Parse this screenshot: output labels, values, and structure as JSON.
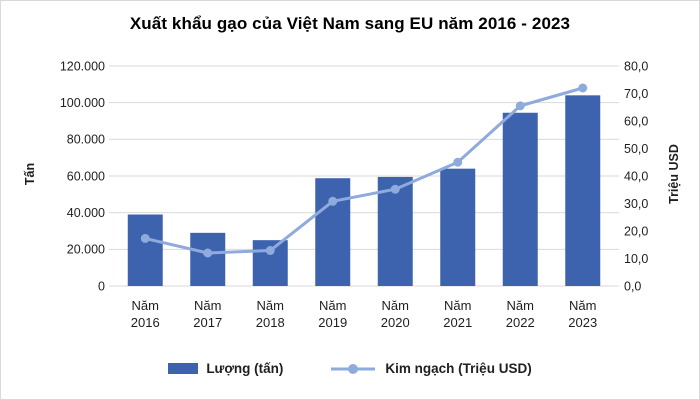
{
  "chart_data": {
    "type": "combo-bar-line",
    "title": "Xuất khẩu gạo của Việt Nam sang EU năm 2016 - 2023",
    "categories": [
      "Năm 2016",
      "Năm 2017",
      "Năm 2018",
      "Năm 2019",
      "Năm 2020",
      "Năm 2021",
      "Năm 2022",
      "Năm 2023"
    ],
    "series": [
      {
        "name": "Lượng (tấn)",
        "type": "bar",
        "axis": "left",
        "color": "#3d63ae",
        "values": [
          39000,
          29000,
          25000,
          58800,
          59500,
          64000,
          94500,
          104000
        ]
      },
      {
        "name": "Kim ngạch (Triệu USD)",
        "type": "line",
        "axis": "right",
        "color": "#8faadc",
        "values": [
          17.3,
          12.0,
          12.9,
          30.8,
          35.2,
          45.0,
          65.5,
          72.0
        ]
      }
    ],
    "axis_left": {
      "label": "Tấn",
      "min": 0,
      "max": 120000,
      "step": 20000,
      "tick_labels": [
        "0",
        "20.000",
        "40.000",
        "60.000",
        "80.000",
        "100.000",
        "120.000"
      ]
    },
    "axis_right": {
      "label": "Triệu USD",
      "min": 0,
      "max": 80,
      "step": 10,
      "tick_labels": [
        "0,0",
        "10,0",
        "20,0",
        "30,0",
        "40,0",
        "50,0",
        "60,0",
        "70,0",
        "80,0"
      ]
    },
    "grid": true,
    "legend_position": "bottom",
    "colors": {
      "grid": "#d9d9d9",
      "axis_text": "#1f1f1f",
      "title_text": "#000000",
      "background": "#ffffff",
      "border": "#d9d9d9"
    }
  }
}
